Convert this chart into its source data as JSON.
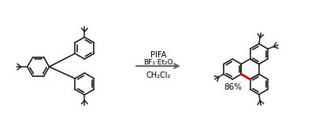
{
  "reagents_line1": "PIFA",
  "reagents_line2": "BF₃·Et₂O",
  "reagents_line3": "CH₂Cl₂",
  "yield_text": "86%",
  "arrow_color": "#666666",
  "bond_color": "#222222",
  "red_bond_color": "#cc0000",
  "background": "#ffffff",
  "fig_width": 4.0,
  "fig_height": 1.68,
  "dpi": 100
}
